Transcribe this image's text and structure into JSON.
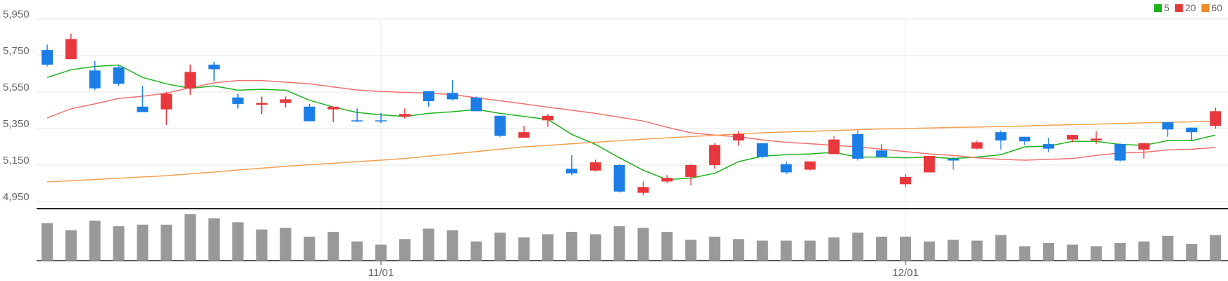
{
  "chart_data": {
    "type": "candlestick",
    "categories": [
      null,
      null,
      null,
      null,
      null,
      null,
      null,
      null,
      null,
      null,
      null,
      null,
      null,
      null,
      "11/01",
      null,
      null,
      null,
      null,
      null,
      null,
      null,
      null,
      null,
      null,
      null,
      null,
      null,
      null,
      null,
      null,
      null,
      null,
      null,
      null,
      null,
      "12/01",
      null,
      null,
      null,
      null,
      null,
      null,
      null,
      null,
      null,
      null,
      null,
      null,
      null
    ],
    "open": [
      5780,
      5730,
      5668,
      5685,
      5470,
      5455,
      5570,
      5700,
      5520,
      5480,
      5490,
      5470,
      5455,
      5395,
      5395,
      5415,
      5555,
      5545,
      5520,
      5420,
      5300,
      5395,
      5130,
      5120,
      5150,
      4998,
      5060,
      5085,
      5150,
      5285,
      5270,
      5155,
      5125,
      5210,
      5320,
      5230,
      5045,
      5110,
      5185,
      5240,
      5330,
      5305,
      5265,
      5290,
      5285,
      5265,
      5235,
      5385,
      5355,
      5365
    ],
    "high": [
      5810,
      5870,
      5720,
      5695,
      5585,
      5550,
      5700,
      5715,
      5540,
      5525,
      5525,
      5485,
      5470,
      5460,
      5435,
      5460,
      5555,
      5615,
      5525,
      5420,
      5365,
      5430,
      5205,
      5180,
      5155,
      5060,
      5095,
      5155,
      5270,
      5335,
      5270,
      5170,
      5170,
      5310,
      5340,
      5265,
      5100,
      5200,
      5195,
      5285,
      5340,
      5305,
      5300,
      5315,
      5335,
      5270,
      5270,
      5385,
      5355,
      5465
    ],
    "low": [
      5690,
      5730,
      5560,
      5585,
      5440,
      5370,
      5535,
      5610,
      5460,
      5430,
      5465,
      5390,
      5385,
      5385,
      5380,
      5405,
      5470,
      5505,
      5445,
      5305,
      5300,
      5360,
      5095,
      5115,
      5000,
      4985,
      5050,
      5040,
      5130,
      5255,
      5190,
      5100,
      5120,
      5210,
      5175,
      5190,
      5030,
      5110,
      5125,
      5235,
      5235,
      5260,
      5220,
      5275,
      5265,
      5170,
      5185,
      5305,
      5280,
      5350
    ],
    "close": [
      5700,
      5840,
      5570,
      5595,
      5440,
      5540,
      5660,
      5675,
      5485,
      5490,
      5510,
      5390,
      5470,
      5390,
      5390,
      5430,
      5500,
      5510,
      5445,
      5310,
      5330,
      5420,
      5105,
      5165,
      5005,
      5030,
      5080,
      5150,
      5260,
      5320,
      5195,
      5110,
      5170,
      5290,
      5185,
      5195,
      5085,
      5200,
      5175,
      5275,
      5285,
      5280,
      5240,
      5315,
      5295,
      5175,
      5270,
      5345,
      5330,
      5445
    ],
    "up_color": "#e8383d",
    "down_color": "#1a7ee6",
    "lines": [
      {
        "name": "5",
        "color": "#1db31d",
        "values": [
          5630,
          5672,
          5690,
          5698,
          5630,
          5595,
          5570,
          5583,
          5560,
          5565,
          5560,
          5505,
          5468,
          5438,
          5425,
          5416,
          5433,
          5442,
          5455,
          5433,
          5416,
          5400,
          5318,
          5263,
          5190,
          5122,
          5070,
          5079,
          5105,
          5169,
          5199,
          5207,
          5211,
          5220,
          5194,
          5194,
          5190,
          5194,
          5186,
          5194,
          5207,
          5250,
          5254,
          5280,
          5280,
          5263,
          5258,
          5284,
          5284,
          5314
        ]
      },
      {
        "name": "20",
        "color": "#f07070",
        "legend_color": "#e53935",
        "values": [
          5408,
          5459,
          5485,
          5515,
          5527,
          5544,
          5574,
          5600,
          5613,
          5613,
          5604,
          5595,
          5578,
          5561,
          5553,
          5548,
          5544,
          5536,
          5519,
          5502,
          5485,
          5467,
          5450,
          5433,
          5412,
          5391,
          5357,
          5327,
          5314,
          5305,
          5288,
          5275,
          5267,
          5258,
          5250,
          5237,
          5224,
          5211,
          5203,
          5190,
          5181,
          5177,
          5181,
          5186,
          5203,
          5216,
          5220,
          5233,
          5237,
          5246
        ]
      },
      {
        "name": "60",
        "color": "#f5a050",
        "legend_color": "#f0892a",
        "values": [
          5058,
          5064,
          5071,
          5078,
          5085,
          5092,
          5102,
          5112,
          5123,
          5133,
          5143,
          5152,
          5160,
          5169,
          5177,
          5186,
          5199,
          5211,
          5224,
          5237,
          5250,
          5258,
          5267,
          5275,
          5284,
          5292,
          5299,
          5306,
          5313,
          5320,
          5327,
          5331,
          5335,
          5339,
          5344,
          5348,
          5350,
          5353,
          5356,
          5358,
          5361,
          5364,
          5368,
          5371,
          5374,
          5378,
          5381,
          5384,
          5387,
          5390
        ]
      }
    ],
    "volume": {
      "color": "#999999",
      "values": [
        47,
        38,
        50,
        43,
        45,
        45,
        58,
        53,
        48,
        39,
        41,
        30,
        36,
        24,
        20,
        27,
        40,
        38,
        24,
        35,
        29,
        33,
        36,
        33,
        43,
        41,
        36,
        26,
        30,
        27,
        25,
        25,
        25,
        29,
        35,
        30,
        30,
        24,
        26,
        25,
        32,
        18,
        22,
        20,
        18,
        22,
        24,
        31,
        21,
        32
      ]
    },
    "ylim": [
      4950,
      5950
    ],
    "yticks": [
      {
        "value": 5950,
        "label": "5,950"
      },
      {
        "value": 5750,
        "label": "5,750"
      },
      {
        "value": 5550,
        "label": "5,550"
      },
      {
        "value": 5350,
        "label": "5,350"
      },
      {
        "value": 5150,
        "label": "5,150"
      },
      {
        "value": 4950,
        "label": "4,950"
      }
    ],
    "grid": true,
    "legend": "top-right"
  }
}
